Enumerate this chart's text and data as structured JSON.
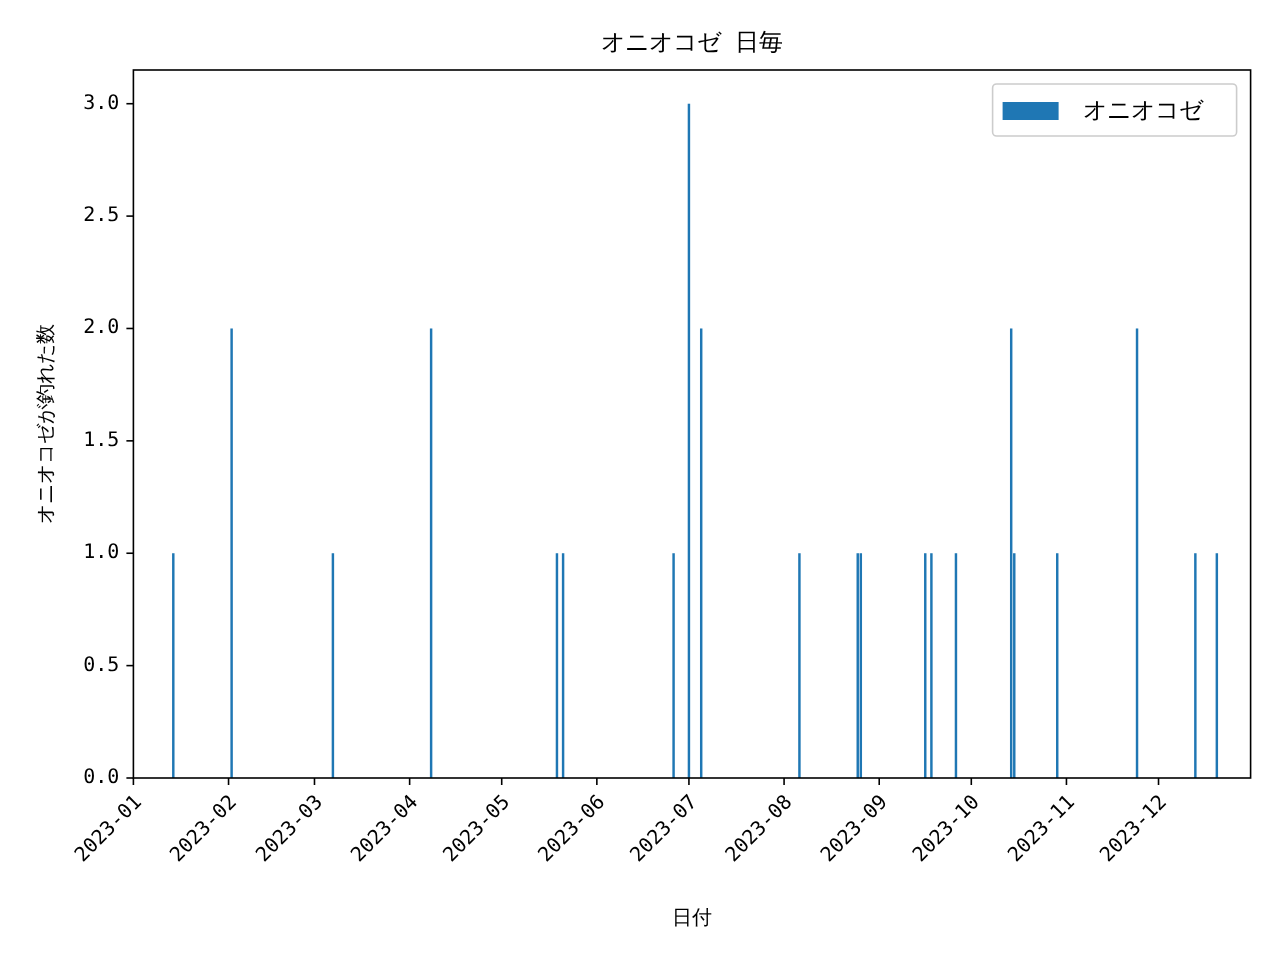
{
  "chart_data": {
    "type": "bar",
    "title": "オニオコゼ 日毎",
    "xlabel": "日付",
    "ylabel": "オニオコゼが釣れた数",
    "x": [
      "2023-01-14",
      "2023-02-02",
      "2023-03-07",
      "2023-04-08",
      "2023-05-19",
      "2023-05-21",
      "2023-06-26",
      "2023-07-01",
      "2023-07-05",
      "2023-08-06",
      "2023-08-25",
      "2023-08-26",
      "2023-09-16",
      "2023-09-18",
      "2023-09-26",
      "2023-10-14",
      "2023-10-15",
      "2023-10-29",
      "2023-11-24",
      "2023-12-13",
      "2023-12-20"
    ],
    "series": [
      {
        "name": "オニオコゼ",
        "color": "#1f77b4",
        "values": [
          1,
          2,
          1,
          2,
          1,
          1,
          1,
          3,
          2,
          1,
          1,
          1,
          1,
          1,
          1,
          2,
          1,
          1,
          2,
          1,
          1
        ]
      }
    ],
    "xlim": [
      "2023-01-01",
      "2023-12-31"
    ],
    "xticks": [
      {
        "value": "2023-01-01",
        "label": "2023-01"
      },
      {
        "value": "2023-02-01",
        "label": "2023-02"
      },
      {
        "value": "2023-03-01",
        "label": "2023-03"
      },
      {
        "value": "2023-04-01",
        "label": "2023-04"
      },
      {
        "value": "2023-05-01",
        "label": "2023-05"
      },
      {
        "value": "2023-06-01",
        "label": "2023-06"
      },
      {
        "value": "2023-07-01",
        "label": "2023-07"
      },
      {
        "value": "2023-08-01",
        "label": "2023-08"
      },
      {
        "value": "2023-09-01",
        "label": "2023-09"
      },
      {
        "value": "2023-10-01",
        "label": "2023-10"
      },
      {
        "value": "2023-11-01",
        "label": "2023-11"
      },
      {
        "value": "2023-12-01",
        "label": "2023-12"
      }
    ],
    "ylim": [
      0,
      3.15
    ],
    "yticks": [
      {
        "value": 0,
        "label": "0.0"
      },
      {
        "value": 0.5,
        "label": "0.5"
      },
      {
        "value": 1,
        "label": "1.0"
      },
      {
        "value": 1.5,
        "label": "1.5"
      },
      {
        "value": 2,
        "label": "2.0"
      },
      {
        "value": 2.5,
        "label": "2.5"
      },
      {
        "value": 3,
        "label": "3.0"
      }
    ],
    "grid": false,
    "legend": "top right"
  }
}
